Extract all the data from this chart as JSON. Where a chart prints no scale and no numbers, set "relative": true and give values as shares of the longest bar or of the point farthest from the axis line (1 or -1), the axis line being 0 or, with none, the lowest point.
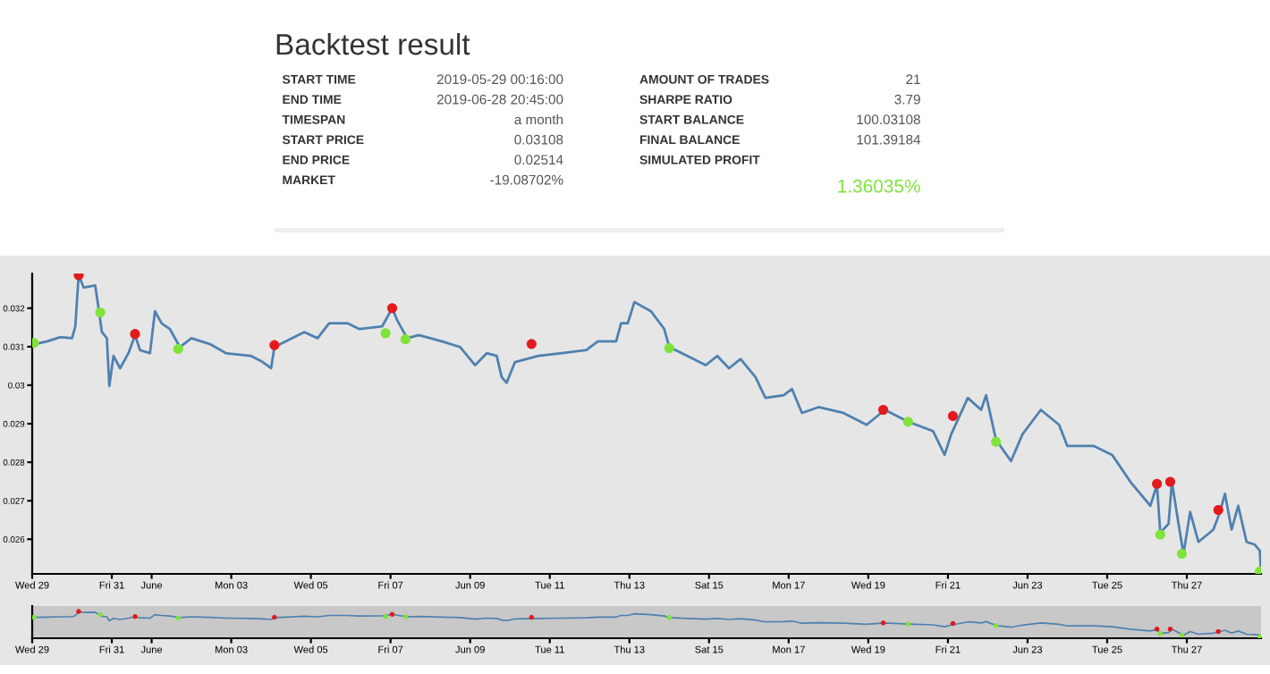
{
  "chart_data": [
    {
      "type": "other",
      "title": "Backtest result",
      "color": "#7fe33a",
      "annotations": [
        "START TIME",
        "2019-05-29 00:16:00",
        "END TIME",
        "2019-06-28 20:45:00",
        "TIMESPAN",
        "a month",
        "START PRICE",
        "0.03108",
        "END PRICE",
        "0.02514",
        "MARKET",
        "-19.08702%",
        "AMOUNT OF TRADES",
        "21",
        "SHARPE RATIO",
        "3.79",
        "START BALANCE",
        "100.03108",
        "FINAL BALANCE",
        "101.39184",
        "SIMULATED PROFIT",
        "1.36035%"
      ]
    },
    {
      "type": "line",
      "xlim": [
        "2019-05-29T00:00",
        "2019-06-28T20:45"
      ],
      "ylim": [
        0.0251,
        0.0329
      ],
      "yticks": [
        0.026,
        0.027,
        0.028,
        0.029,
        0.03,
        0.031,
        0.032
      ],
      "xticks": [
        {
          "value": "2019-05-29",
          "label": "Wed 29"
        },
        {
          "value": "2019-05-31",
          "label": "Fri 31"
        },
        {
          "value": "2019-06-01",
          "label": "June"
        },
        {
          "value": "2019-06-03",
          "label": "Mon 03"
        },
        {
          "value": "2019-06-05",
          "label": "Wed 05"
        },
        {
          "value": "2019-06-07",
          "label": "Fri 07"
        },
        {
          "value": "2019-06-09",
          "label": "Jun 09"
        },
        {
          "value": "2019-06-11",
          "label": "Tue 11"
        },
        {
          "value": "2019-06-13",
          "label": "Thu 13"
        },
        {
          "value": "2019-06-15",
          "label": "Sat 15"
        },
        {
          "value": "2019-06-17",
          "label": "Mon 17"
        },
        {
          "value": "2019-06-19",
          "label": "Wed 19"
        },
        {
          "value": "2019-06-21",
          "label": "Fri 21"
        },
        {
          "value": "2019-06-23",
          "label": "Jun 23"
        },
        {
          "value": "2019-06-25",
          "label": "Tue 25"
        },
        {
          "value": "2019-06-27",
          "label": "Thu 27"
        }
      ],
      "grid": false,
      "legend": false,
      "series": [
        {
          "type": "line",
          "color": "#4f81b0",
          "x": [
            "2019-05-29T00:16",
            "2019-05-29T02:00",
            "2019-05-29T09:00",
            "2019-05-29T17:00",
            "2019-05-30T00:00",
            "2019-05-30T02:00",
            "2019-05-30T04:00",
            "2019-05-30T07:00",
            "2019-05-30T14:00",
            "2019-05-30T16:00",
            "2019-05-30T18:00",
            "2019-05-30T21:00",
            "2019-05-30T22:30",
            "2019-05-31T01:00",
            "2019-05-31T05:00",
            "2019-05-31T10:00",
            "2019-05-31T14:00",
            "2019-05-31T17:00",
            "2019-05-31T23:00",
            "2019-06-01T02:00",
            "2019-06-01T06:00",
            "2019-06-01T11:00",
            "2019-06-01T17:00",
            "2019-06-02T00:00",
            "2019-06-02T11:00",
            "2019-06-02T21:00",
            "2019-06-03T12:00",
            "2019-06-03T19:00",
            "2019-06-04T00:00",
            "2019-06-04T02:00",
            "2019-06-04T09:00",
            "2019-06-04T20:00",
            "2019-06-05T04:00",
            "2019-06-05T11:00",
            "2019-06-05T22:00",
            "2019-06-06T05:00",
            "2019-06-06T19:00",
            "2019-06-07T01:00",
            "2019-06-07T04:00",
            "2019-06-07T10:00",
            "2019-06-07T17:00",
            "2019-06-08T07:00",
            "2019-06-08T18:00",
            "2019-06-09T03:00",
            "2019-06-09T10:00",
            "2019-06-09T16:00",
            "2019-06-09T19:00",
            "2019-06-09T22:00",
            "2019-06-10T03:00",
            "2019-06-10T10:00",
            "2019-06-10T17:00",
            "2019-06-11T07:00",
            "2019-06-11T22:00",
            "2019-06-12T05:00",
            "2019-06-12T16:00",
            "2019-06-12T19:00",
            "2019-06-12T23:00",
            "2019-06-13T03:00",
            "2019-06-13T13:00",
            "2019-06-13T21:00",
            "2019-06-14T00:00",
            "2019-06-14T11:00",
            "2019-06-14T22:00",
            "2019-06-15T05:00",
            "2019-06-15T12:00",
            "2019-06-15T19:00",
            "2019-06-16T04:00",
            "2019-06-16T10:00",
            "2019-06-16T21:00",
            "2019-06-17T02:00",
            "2019-06-17T08:00",
            "2019-06-17T18:00",
            "2019-06-18T09:00",
            "2019-06-18T23:00",
            "2019-06-19T10:00",
            "2019-06-20T00:00",
            "2019-06-20T15:00",
            "2019-06-20T22:00",
            "2019-06-21T02:00",
            "2019-06-21T12:00",
            "2019-06-21T20:00",
            "2019-06-21T23:00",
            "2019-06-22T05:00",
            "2019-06-22T14:00",
            "2019-06-22T21:00",
            "2019-06-23T08:00",
            "2019-06-23T19:00",
            "2019-06-24T00:00",
            "2019-06-24T16:00",
            "2019-06-25T03:00",
            "2019-06-25T14:00",
            "2019-06-26T02:00",
            "2019-06-26T06:00",
            "2019-06-26T08:00",
            "2019-06-26T13:00",
            "2019-06-26T15:00",
            "2019-06-26T19:00",
            "2019-06-26T22:00",
            "2019-06-27T02:00",
            "2019-06-27T07:00",
            "2019-06-27T16:00",
            "2019-06-27T20:00",
            "2019-06-27T23:00",
            "2019-06-28T03:00",
            "2019-06-28T07:00",
            "2019-06-28T12:00",
            "2019-06-28T17:00",
            "2019-06-28T20:00",
            "2019-06-28T20:45"
          ],
          "values": [
            0.03108,
            0.03107,
            0.03114,
            0.03125,
            0.03122,
            0.03153,
            0.03286,
            0.03254,
            0.03259,
            0.032,
            0.03138,
            0.03122,
            0.02998,
            0.03076,
            0.03044,
            0.03083,
            0.0313,
            0.03091,
            0.03083,
            0.03192,
            0.03161,
            0.03146,
            0.03099,
            0.03122,
            0.03107,
            0.03083,
            0.03076,
            0.0306,
            0.03044,
            0.03099,
            0.03114,
            0.03138,
            0.03122,
            0.03161,
            0.03161,
            0.03146,
            0.03153,
            0.032,
            0.03169,
            0.03122,
            0.0313,
            0.03114,
            0.03099,
            0.03052,
            0.03083,
            0.03076,
            0.03021,
            0.03006,
            0.0306,
            0.03068,
            0.03076,
            0.03083,
            0.03091,
            0.03114,
            0.03114,
            0.03161,
            0.03161,
            0.03216,
            0.03192,
            0.03146,
            0.03099,
            0.03076,
            0.03052,
            0.03076,
            0.03044,
            0.03068,
            0.03021,
            0.02967,
            0.02974,
            0.0299,
            0.02928,
            0.02943,
            0.02928,
            0.02897,
            0.02936,
            0.02905,
            0.02881,
            0.02819,
            0.02873,
            0.02967,
            0.02936,
            0.02974,
            0.02858,
            0.02803,
            0.02873,
            0.02936,
            0.02897,
            0.02842,
            0.02842,
            0.02819,
            0.02749,
            0.02687,
            0.02741,
            0.02617,
            0.0264,
            0.02749,
            0.0264,
            0.02562,
            0.02671,
            0.02593,
            0.02625,
            0.02671,
            0.02718,
            0.02625,
            0.02687,
            0.02593,
            0.02586,
            0.0257,
            0.02514
          ]
        },
        {
          "type": "scatter",
          "color": "#e31a1c",
          "x": [
            "2019-05-30T04:00",
            "2019-05-31T14:00",
            "2019-06-04T02:00",
            "2019-06-07T01:00",
            "2019-06-10T13:00",
            "2019-06-19T09:00",
            "2019-06-21T03:00",
            "2019-06-26T06:00",
            "2019-06-26T14:00",
            "2019-06-27T19:00"
          ],
          "values": [
            0.03286,
            0.03133,
            0.03104,
            0.032,
            0.03107,
            0.02936,
            0.0292,
            0.02744,
            0.02749,
            0.02676
          ]
        },
        {
          "type": "scatter",
          "color": "#7fe33a",
          "x": [
            "2019-05-29T01:00",
            "2019-05-30T17:00",
            "2019-06-01T16:00",
            "2019-06-06T21:00",
            "2019-06-07T09:00",
            "2019-06-14T00:00",
            "2019-06-20T00:00",
            "2019-06-22T05:00",
            "2019-06-26T08:00",
            "2019-06-26T21:00",
            "2019-06-28T20:00"
          ],
          "values": [
            0.0311,
            0.03189,
            0.03094,
            0.03135,
            0.03119,
            0.03096,
            0.02905,
            0.02853,
            0.02612,
            0.02562,
            0.02516
          ]
        }
      ]
    },
    {
      "type": "line",
      "relative": true,
      "xlim": [
        "2019-05-29T00:00",
        "2019-06-28T20:45"
      ],
      "xticks": [
        {
          "value": "2019-05-29",
          "label": "Wed 29"
        },
        {
          "value": "2019-05-31",
          "label": "Fri 31"
        },
        {
          "value": "2019-06-01",
          "label": "June"
        },
        {
          "value": "2019-06-03",
          "label": "Mon 03"
        },
        {
          "value": "2019-06-05",
          "label": "Wed 05"
        },
        {
          "value": "2019-06-07",
          "label": "Fri 07"
        },
        {
          "value": "2019-06-09",
          "label": "Jun 09"
        },
        {
          "value": "2019-06-11",
          "label": "Tue 11"
        },
        {
          "value": "2019-06-13",
          "label": "Thu 13"
        },
        {
          "value": "2019-06-15",
          "label": "Sat 15"
        },
        {
          "value": "2019-06-17",
          "label": "Mon 17"
        },
        {
          "value": "2019-06-19",
          "label": "Wed 19"
        },
        {
          "value": "2019-06-21",
          "label": "Fri 21"
        },
        {
          "value": "2019-06-23",
          "label": "Jun 23"
        },
        {
          "value": "2019-06-25",
          "label": "Tue 25"
        },
        {
          "value": "2019-06-27",
          "label": "Thu 27"
        }
      ],
      "grid": false,
      "legend": false,
      "series": [
        {
          "type": "line",
          "color": "#4f81b0",
          "x": [
            "2019-05-29T00:16",
            "2019-05-29T02:00",
            "2019-05-29T09:00",
            "2019-05-29T17:00",
            "2019-05-30T00:00",
            "2019-05-30T02:00",
            "2019-05-30T04:00",
            "2019-05-30T07:00",
            "2019-05-30T14:00",
            "2019-05-30T16:00",
            "2019-05-30T18:00",
            "2019-05-30T21:00",
            "2019-05-30T22:30",
            "2019-05-31T01:00",
            "2019-05-31T05:00",
            "2019-05-31T10:00",
            "2019-05-31T14:00",
            "2019-05-31T17:00",
            "2019-05-31T23:00",
            "2019-06-01T02:00",
            "2019-06-01T06:00",
            "2019-06-01T11:00",
            "2019-06-01T17:00",
            "2019-06-02T00:00",
            "2019-06-02T11:00",
            "2019-06-02T21:00",
            "2019-06-03T12:00",
            "2019-06-03T19:00",
            "2019-06-04T00:00",
            "2019-06-04T02:00",
            "2019-06-04T09:00",
            "2019-06-04T20:00",
            "2019-06-05T04:00",
            "2019-06-05T11:00",
            "2019-06-05T22:00",
            "2019-06-06T05:00",
            "2019-06-06T19:00",
            "2019-06-07T01:00",
            "2019-06-07T04:00",
            "2019-06-07T10:00",
            "2019-06-07T17:00",
            "2019-06-08T07:00",
            "2019-06-08T18:00",
            "2019-06-09T03:00",
            "2019-06-09T10:00",
            "2019-06-09T16:00",
            "2019-06-09T19:00",
            "2019-06-09T22:00",
            "2019-06-10T03:00",
            "2019-06-10T10:00",
            "2019-06-10T17:00",
            "2019-06-11T07:00",
            "2019-06-11T22:00",
            "2019-06-12T05:00",
            "2019-06-12T16:00",
            "2019-06-12T19:00",
            "2019-06-12T23:00",
            "2019-06-13T03:00",
            "2019-06-13T13:00",
            "2019-06-13T21:00",
            "2019-06-14T00:00",
            "2019-06-14T11:00",
            "2019-06-14T22:00",
            "2019-06-15T05:00",
            "2019-06-15T12:00",
            "2019-06-15T19:00",
            "2019-06-16T04:00",
            "2019-06-16T10:00",
            "2019-06-16T21:00",
            "2019-06-17T02:00",
            "2019-06-17T08:00",
            "2019-06-17T18:00",
            "2019-06-18T09:00",
            "2019-06-18T23:00",
            "2019-06-19T10:00",
            "2019-06-20T00:00",
            "2019-06-20T15:00",
            "2019-06-20T22:00",
            "2019-06-21T02:00",
            "2019-06-21T12:00",
            "2019-06-21T20:00",
            "2019-06-21T23:00",
            "2019-06-22T05:00",
            "2019-06-22T14:00",
            "2019-06-22T21:00",
            "2019-06-23T08:00",
            "2019-06-23T19:00",
            "2019-06-24T00:00",
            "2019-06-24T16:00",
            "2019-06-25T03:00",
            "2019-06-25T14:00",
            "2019-06-26T02:00",
            "2019-06-26T06:00",
            "2019-06-26T08:00",
            "2019-06-26T13:00",
            "2019-06-26T15:00",
            "2019-06-26T19:00",
            "2019-06-26T22:00",
            "2019-06-27T02:00",
            "2019-06-27T07:00",
            "2019-06-27T16:00",
            "2019-06-27T20:00",
            "2019-06-27T23:00",
            "2019-06-28T03:00",
            "2019-06-28T07:00",
            "2019-06-28T12:00",
            "2019-06-28T17:00",
            "2019-06-28T20:00",
            "2019-06-28T20:45"
          ],
          "values": [
            0.78,
            0.78,
            0.79,
            0.8,
            0.8,
            0.84,
            1.0,
            0.96,
            0.97,
            0.89,
            0.82,
            0.8,
            0.65,
            0.74,
            0.7,
            0.75,
            0.81,
            0.76,
            0.75,
            0.88,
            0.85,
            0.83,
            0.77,
            0.8,
            0.78,
            0.75,
            0.74,
            0.72,
            0.7,
            0.77,
            0.79,
            0.82,
            0.8,
            0.85,
            0.85,
            0.83,
            0.84,
            0.89,
            0.86,
            0.8,
            0.81,
            0.79,
            0.77,
            0.71,
            0.75,
            0.74,
            0.68,
            0.66,
            0.72,
            0.73,
            0.74,
            0.75,
            0.76,
            0.79,
            0.79,
            0.85,
            0.85,
            0.91,
            0.88,
            0.83,
            0.77,
            0.74,
            0.71,
            0.74,
            0.7,
            0.73,
            0.68,
            0.61,
            0.62,
            0.64,
            0.56,
            0.58,
            0.56,
            0.52,
            0.57,
            0.53,
            0.5,
            0.43,
            0.49,
            0.61,
            0.57,
            0.62,
            0.48,
            0.41,
            0.49,
            0.57,
            0.52,
            0.46,
            0.46,
            0.43,
            0.34,
            0.27,
            0.33,
            0.18,
            0.21,
            0.34,
            0.21,
            0.11,
            0.25,
            0.15,
            0.19,
            0.25,
            0.3,
            0.19,
            0.27,
            0.15,
            0.14,
            0.12,
            0.05
          ]
        },
        {
          "type": "scatter",
          "color": "#e31a1c",
          "x": [
            "2019-05-30T04:00",
            "2019-05-31T14:00",
            "2019-06-04T02:00",
            "2019-06-07T01:00",
            "2019-06-10T13:00",
            "2019-06-19T09:00",
            "2019-06-21T03:00",
            "2019-06-26T06:00",
            "2019-06-26T14:00",
            "2019-06-27T19:00"
          ],
          "values": [
            1.0,
            0.81,
            0.78,
            0.89,
            0.78,
            0.57,
            0.55,
            0.34,
            0.34,
            0.25
          ]
        },
        {
          "type": "scatter",
          "color": "#7fe33a",
          "x": [
            "2019-05-29T01:00",
            "2019-05-30T17:00",
            "2019-06-01T16:00",
            "2019-06-06T21:00",
            "2019-06-07T09:00",
            "2019-06-14T00:00",
            "2019-06-20T00:00",
            "2019-06-22T05:00",
            "2019-06-26T08:00",
            "2019-06-26T21:00",
            "2019-06-28T20:00"
          ],
          "values": [
            0.78,
            0.88,
            0.76,
            0.81,
            0.8,
            0.77,
            0.53,
            0.47,
            0.17,
            0.11,
            0.06
          ]
        }
      ]
    }
  ]
}
